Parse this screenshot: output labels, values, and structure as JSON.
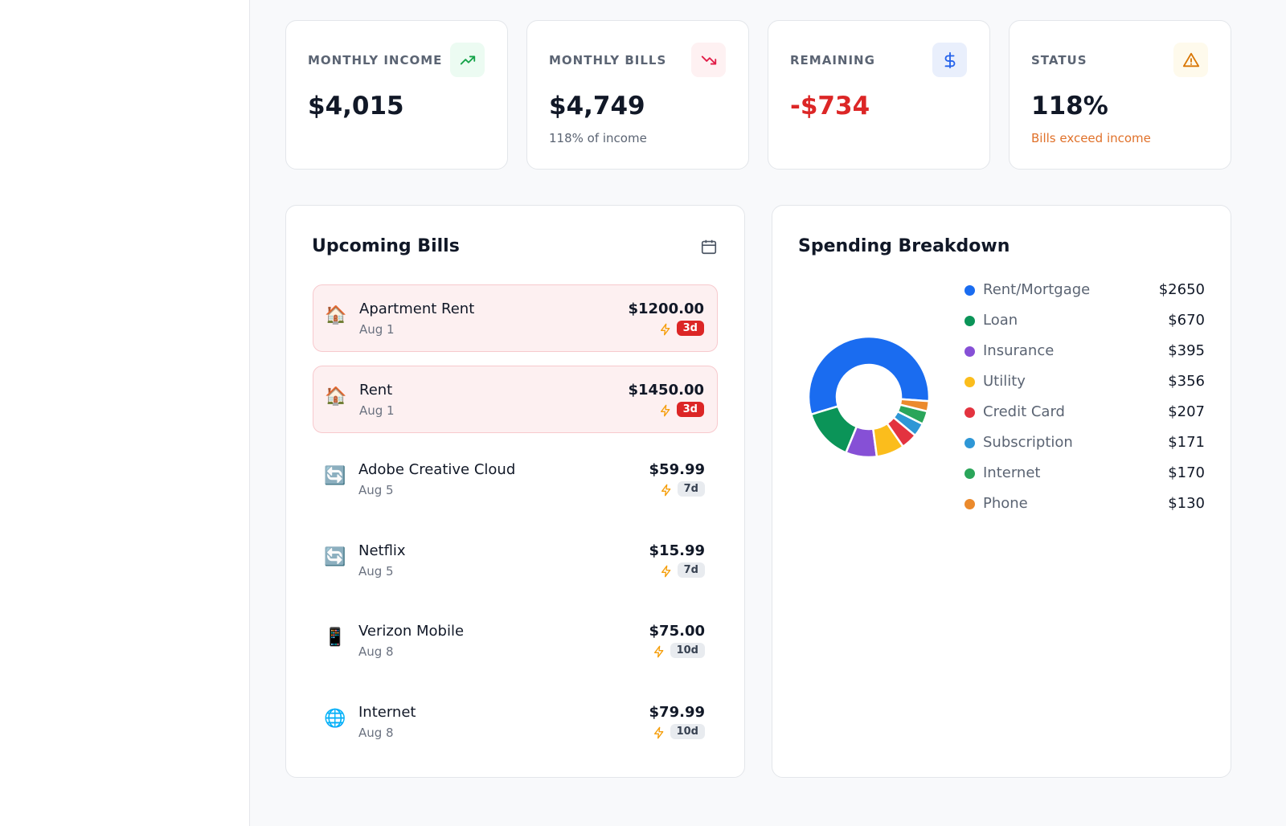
{
  "stats": [
    {
      "label": "MONTHLY INCOME",
      "value": "$4,015"
    },
    {
      "label": "MONTHLY BILLS",
      "value": "$4,749",
      "note": "118% of income"
    },
    {
      "label": "REMAINING",
      "value": "-$734"
    },
    {
      "label": "STATUS",
      "value": "118%",
      "note": "Bills exceed income"
    }
  ],
  "bills": {
    "title": "Upcoming Bills",
    "items": [
      {
        "icon": "🏠",
        "name": "Apartment Rent",
        "date": "Aug 1",
        "amount": "$1200.00",
        "badge": "3d",
        "urgent": true
      },
      {
        "icon": "🏠",
        "name": "Rent",
        "date": "Aug 1",
        "amount": "$1450.00",
        "badge": "3d",
        "urgent": true
      },
      {
        "icon": "🔄",
        "name": "Adobe Creative Cloud",
        "date": "Aug 5",
        "amount": "$59.99",
        "badge": "7d",
        "urgent": false
      },
      {
        "icon": "🔄",
        "name": "Netflix",
        "date": "Aug 5",
        "amount": "$15.99",
        "badge": "7d",
        "urgent": false
      },
      {
        "icon": "📱",
        "name": "Verizon Mobile",
        "date": "Aug 8",
        "amount": "$75.00",
        "badge": "10d",
        "urgent": false
      },
      {
        "icon": "🌐",
        "name": "Internet",
        "date": "Aug 8",
        "amount": "$79.99",
        "badge": "10d",
        "urgent": false
      }
    ]
  },
  "chart_data": {
    "type": "pie",
    "title": "Spending Breakdown",
    "categories": [
      "Rent/Mortgage",
      "Loan",
      "Insurance",
      "Utility",
      "Credit Card",
      "Subscription",
      "Internet",
      "Phone"
    ],
    "values": [
      2650,
      670,
      395,
      356,
      207,
      171,
      170,
      130
    ],
    "value_labels": [
      "$2650",
      "$670",
      "$395",
      "$356",
      "$207",
      "$171",
      "$170",
      "$130"
    ],
    "colors": [
      "#1a6cf0",
      "#0b9458",
      "#8650d6",
      "#fbbd1c",
      "#e3333f",
      "#2e97d6",
      "#2aa55a",
      "#eb8a2c"
    ]
  }
}
